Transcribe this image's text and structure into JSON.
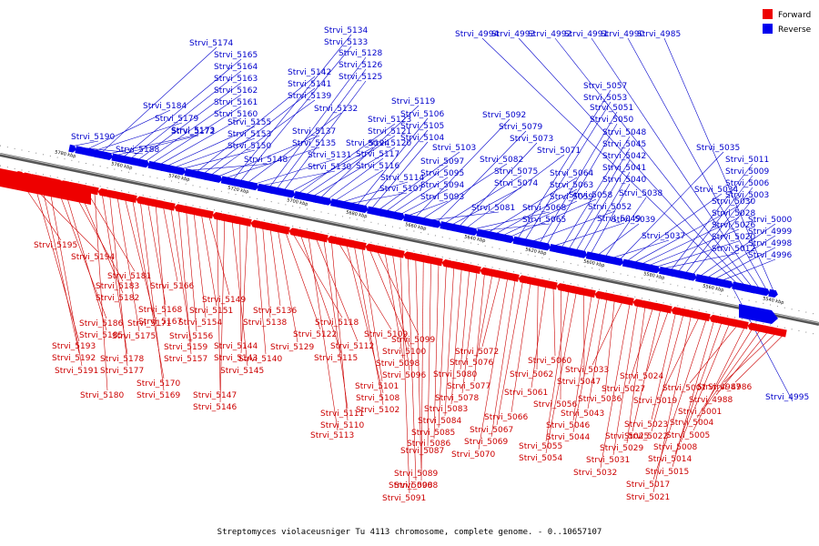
{
  "caption": "Streptomyces violaceusniger Tu 4113 chromosome, complete genome. - 0..10657107",
  "legend": [
    {
      "label": "Forward",
      "color": "#ee0000"
    },
    {
      "label": "Reverse",
      "color": "#0000ee"
    }
  ],
  "ticks": [
    "5780 kbp",
    "5760 kbp",
    "5740 kbp",
    "5720 kbp",
    "5700 kbp",
    "5680 kbp",
    "5660 kbp",
    "5640 kbp",
    "5620 kbp",
    "5600 kbp",
    "5580 kbp",
    "5560 kbp",
    "5540 kbp"
  ],
  "reverse_genes": [
    "Strvi_5190",
    "Strvi_5188",
    "Strvi_5184",
    "Strvi_5179",
    "Strvi_5174",
    "Strvi_5173",
    "Strvi_5172",
    "Strvi_5165",
    "Strvi_5164",
    "Strvi_5163",
    "Strvi_5162",
    "Strvi_5161",
    "Strvi_5160",
    "Strvi_5155",
    "Strvi_5153",
    "Strvi_5150",
    "Strvi_5148",
    "Strvi_5142",
    "Strvi_5141",
    "Strvi_5139",
    "Strvi_5137",
    "Strvi_5135",
    "Strvi_5134",
    "Strvi_5133",
    "Strvi_5132",
    "Strvi_5131",
    "Strvi_5130",
    "Strvi_5128",
    "Strvi_5126",
    "Strvi_5125",
    "Strvi_5124",
    "Strvi_5123",
    "Strvi_5121",
    "Strvi_5120",
    "Strvi_5119",
    "Strvi_5117",
    "Strvi_5116",
    "Strvi_5114",
    "Strvi_5107",
    "Strvi_5106",
    "Strvi_5105",
    "Strvi_5104",
    "Strvi_5103",
    "Strvi_5097",
    "Strvi_5095",
    "Strvi_5094",
    "Strvi_5093",
    "Strvi_5092",
    "Strvi_5082",
    "Strvi_5081",
    "Strvi_5079",
    "Strvi_5075",
    "Strvi_5074",
    "Strvi_5073",
    "Strvi_5071",
    "Strvi_5068",
    "Strvi_5065",
    "Strvi_5064",
    "Strvi_5063",
    "Strvi_5059",
    "Strvi_5058",
    "Strvi_5057",
    "Strvi_5053",
    "Strvi_5052",
    "Strvi_5051",
    "Strvi_5050",
    "Strvi_5049",
    "Strvi_5048",
    "Strvi_5045",
    "Strvi_5042",
    "Strvi_5041",
    "Strvi_5040",
    "Strvi_5039",
    "Strvi_5038",
    "Strvi_5037",
    "Strvi_5035",
    "Strvi_5034",
    "Strvi_5030",
    "Strvi_5028",
    "Strvi_5026",
    "Strvi_5020",
    "Strvi_5012",
    "Strvi_5011",
    "Strvi_5009",
    "Strvi_5006",
    "Strvi_5003",
    "Strvi_5000",
    "Strvi_4999",
    "Strvi_4998",
    "Strvi_4996",
    "Strvi_4995",
    "Strvi_4994",
    "Strvi_4993",
    "Strvi_4992",
    "Strvi_4991",
    "Strvi_4990",
    "Strvi_4985"
  ],
  "forward_genes": [
    "Strvi_5195",
    "Strvi_5194",
    "Strvi_5193",
    "Strvi_5192",
    "Strvi_5191",
    "Strvi_5186",
    "Strvi_5185",
    "Strvi_5183",
    "Strvi_5182",
    "Strvi_5181",
    "Strvi_5180",
    "Strvi_5178",
    "Strvi_5177",
    "Strvi_5175",
    "Strvi_5171",
    "Strvi_5170",
    "Strvi_5169",
    "Strvi_5168",
    "Strvi_5167",
    "Strvi_5166",
    "Strvi_5159",
    "Strvi_5157",
    "Strvi_5156",
    "Strvi_5154",
    "Strvi_5151",
    "Strvi_5149",
    "Strvi_5147",
    "Strvi_5146",
    "Strvi_5145",
    "Strvi_5144",
    "Strvi_5143",
    "Strvi_5140",
    "Strvi_5138",
    "Strvi_5136",
    "Strvi_5129",
    "Strvi_5122",
    "Strvi_5118",
    "Strvi_5115",
    "Strvi_5113",
    "Strvi_5112",
    "Strvi_5111",
    "Strvi_5110",
    "Strvi_5109",
    "Strvi_5108",
    "Strvi_5102",
    "Strvi_5101",
    "Strvi_5100",
    "Strvi_5099",
    "Strvi_5098",
    "Strvi_5096",
    "Strvi_5091",
    "Strvi_5090",
    "Strvi_5089",
    "Strvi_5088",
    "Strvi_5087",
    "Strvi_5086",
    "Strvi_5085",
    "Strvi_5084",
    "Strvi_5083",
    "Strvi_5080",
    "Strvi_5078",
    "Strvi_5077",
    "Strvi_5076",
    "Strvi_5072",
    "Strvi_5070",
    "Strvi_5069",
    "Strvi_5067",
    "Strvi_5066",
    "Strvi_5062",
    "Strvi_5061",
    "Strvi_5060",
    "Strvi_5056",
    "Strvi_5055",
    "Strvi_5054",
    "Strvi_5047",
    "Strvi_5046",
    "Strvi_5044",
    "Strvi_5043",
    "Strvi_5036",
    "Strvi_5033",
    "Strvi_5032",
    "Strvi_5031",
    "Strvi_5029",
    "Strvi_5027",
    "Strvi_5025",
    "Strvi_5024",
    "Strvi_5023",
    "Strvi_5022",
    "Strvi_5021",
    "Strvi_5019",
    "Strvi_5017",
    "Strvi_5015",
    "Strvi_5014",
    "Strvi_5008",
    "Strvi_5007",
    "Strvi_5005",
    "Strvi_5004",
    "Strvi_5001",
    "Strvi_4988",
    "Strvi_4987",
    "Strvi_4986"
  ]
}
